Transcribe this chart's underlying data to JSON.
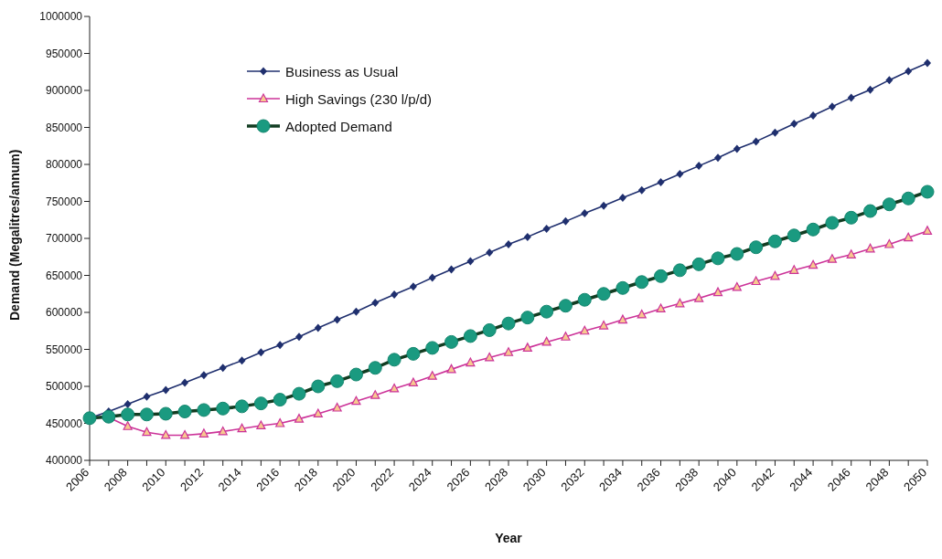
{
  "chart_data": {
    "type": "line",
    "xlabel": "Year",
    "ylabel": "Demand (Megalitres/annum)",
    "categories": [
      "2006",
      null,
      "2008",
      null,
      "2010",
      null,
      "2012",
      null,
      "2014",
      null,
      "2016",
      null,
      "2018",
      null,
      "2020",
      null,
      "2022",
      null,
      "2024",
      null,
      "2026",
      null,
      "2028",
      null,
      "2030",
      null,
      "2032",
      null,
      "2034",
      null,
      "2036",
      null,
      "2038",
      null,
      "2040",
      null,
      "2042",
      null,
      "2044",
      null,
      "2046",
      null,
      "2048",
      null,
      "2050"
    ],
    "ylim": [
      400000,
      1000000
    ],
    "yticks": [
      400000,
      450000,
      500000,
      550000,
      600000,
      650000,
      700000,
      750000,
      800000,
      850000,
      900000,
      950000,
      1000000
    ],
    "grid": false,
    "legend": "top left",
    "line_style": "solid",
    "series": [
      {
        "name": "Business as Usual",
        "color": "#1f2f6e",
        "marker": "diamond",
        "values": [
          457000,
          466000,
          476000,
          486000,
          495000,
          505000,
          515000,
          525000,
          535000,
          546000,
          556000,
          567000,
          579000,
          590000,
          601000,
          613000,
          624000,
          635000,
          647000,
          658000,
          669000,
          681000,
          692000,
          702000,
          713000,
          723000,
          734000,
          744000,
          755000,
          765000,
          776000,
          787000,
          798000,
          809000,
          821000,
          831000,
          843000,
          855000,
          866000,
          878000,
          890000,
          901000,
          914000,
          926000,
          937000
        ]
      },
      {
        "name": "High Savings (230 l/p/d)",
        "color": "#cc3399",
        "marker": "triangle",
        "values": [
          457000,
          458000,
          446000,
          438000,
          434000,
          434000,
          436000,
          439000,
          443000,
          447000,
          450000,
          456000,
          463000,
          471000,
          480000,
          488000,
          497000,
          505000,
          514000,
          523000,
          532000,
          539000,
          546000,
          552000,
          560000,
          567000,
          575000,
          582000,
          590000,
          597000,
          605000,
          612000,
          619000,
          627000,
          634000,
          642000,
          649000,
          657000,
          664000,
          672000,
          678000,
          686000,
          692000,
          701000,
          710000
        ]
      },
      {
        "name": "Adopted Demand",
        "color": "#123d22",
        "marker": "circle",
        "values": [
          457000,
          459000,
          462000,
          462000,
          463000,
          466000,
          468000,
          470000,
          473000,
          477000,
          482000,
          490000,
          500000,
          507000,
          516000,
          525000,
          536000,
          544000,
          552000,
          560000,
          568000,
          576000,
          585000,
          593000,
          601000,
          609000,
          617000,
          625000,
          633000,
          641000,
          649000,
          657000,
          665000,
          673000,
          679000,
          688000,
          696000,
          704000,
          712000,
          721000,
          728000,
          737000,
          746000,
          754000,
          763000
        ]
      }
    ]
  }
}
